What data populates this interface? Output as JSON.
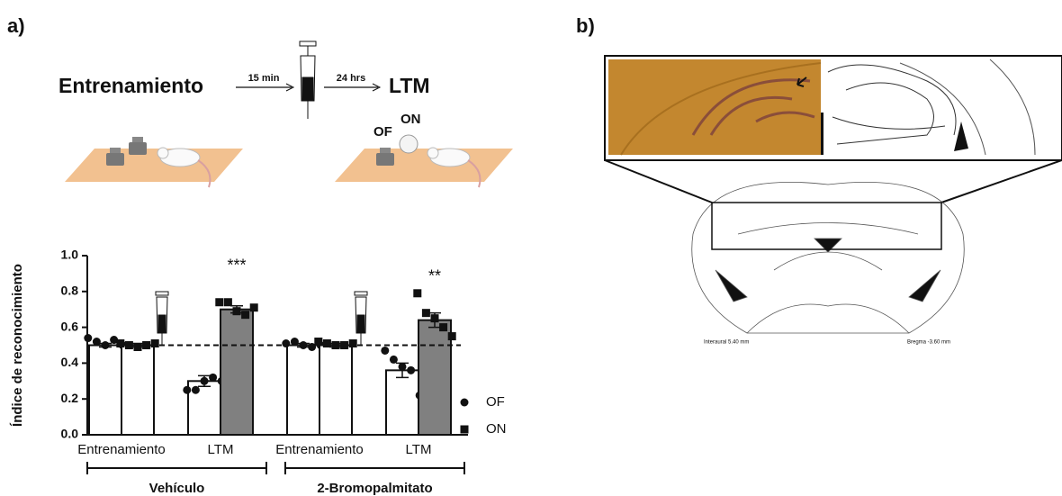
{
  "panels": {
    "a": "a)",
    "b": "b)"
  },
  "schematic": {
    "training": "Entrenamiento",
    "delay1": "15 min",
    "delay2": "24 hrs",
    "test": "LTM",
    "object_old": "OF",
    "object_new": "ON"
  },
  "atlas": {
    "interaural": "Interaural 5.40 mm",
    "bregma": "Bregma -3.60 mm"
  },
  "chart_data": {
    "type": "bar",
    "y_label": "Índice de reconocimiento",
    "categories": [
      "Entrenamiento",
      "LTM",
      "Entrenamiento",
      "LTM"
    ],
    "groups": [
      "Vehículo",
      "2-Bromopalmitato"
    ],
    "ylim": [
      0,
      1
    ],
    "yticks": [
      {
        "value": 0,
        "label": "0.0"
      },
      {
        "value": 0.2,
        "label": "0.2"
      },
      {
        "value": 0.4,
        "label": "0.4"
      },
      {
        "value": 0.6,
        "label": "0.6"
      },
      {
        "value": 0.8,
        "label": "0.8"
      },
      {
        "value": 1,
        "label": "1.0"
      }
    ],
    "reference_line": 0.5,
    "series": [
      {
        "name": "OF",
        "marker": "circle",
        "colors": [
          "#ffffff",
          "#ffffff",
          "#ffffff",
          "#ffffff"
        ],
        "values": [
          0.5,
          0.3,
          0.5,
          0.36
        ],
        "errors": [
          0.01,
          0.03,
          0.01,
          0.04
        ],
        "points": [
          [
            0.54,
            0.52,
            0.5,
            0.53,
            0.5
          ],
          [
            0.25,
            0.25,
            0.3,
            0.32,
            0.3
          ],
          [
            0.51,
            0.52,
            0.5,
            0.49,
            0.5
          ],
          [
            0.47,
            0.42,
            0.38,
            0.36,
            0.22
          ]
        ],
        "significance": [
          null,
          null,
          null,
          null
        ]
      },
      {
        "name": "ON",
        "marker": "square",
        "colors": [
          "#ffffff",
          "#808080",
          "#ffffff",
          "#808080"
        ],
        "values": [
          0.5,
          0.7,
          0.5,
          0.64
        ],
        "errors": [
          0.01,
          0.02,
          0.01,
          0.04
        ],
        "points": [
          [
            0.51,
            0.5,
            0.49,
            0.5,
            0.51
          ],
          [
            0.74,
            0.74,
            0.69,
            0.67,
            0.71
          ],
          [
            0.52,
            0.51,
            0.5,
            0.5,
            0.51
          ],
          [
            0.79,
            0.68,
            0.65,
            0.6,
            0.55
          ]
        ],
        "significance": [
          null,
          "***",
          null,
          "**"
        ]
      }
    ]
  }
}
